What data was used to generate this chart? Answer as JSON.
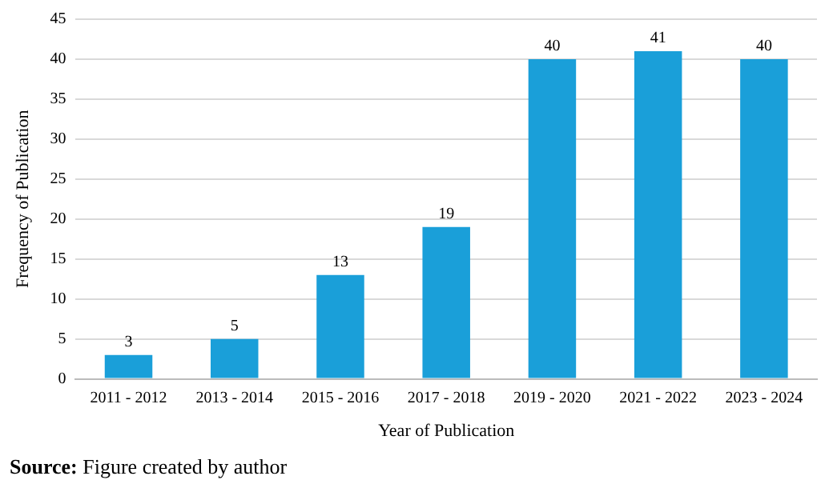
{
  "chart_data": {
    "type": "bar",
    "xlabel": "Year of Publication",
    "ylabel": "Frequency of Publication",
    "categories": [
      "2011 - 2012",
      "2013 - 2014",
      "2015 - 2016",
      "2017 - 2018",
      "2019 - 2020",
      "2021 - 2022",
      "2023 - 2024"
    ],
    "values": [
      3,
      5,
      13,
      19,
      40,
      41,
      40
    ],
    "color": "#1a9fd9",
    "ylim": [
      0,
      45
    ],
    "yticks": [
      0,
      5,
      10,
      15,
      20,
      25,
      30,
      35,
      40,
      45
    ],
    "grid": "y",
    "data_labels": true,
    "annotations": [
      "Source: Figure created by author"
    ]
  }
}
